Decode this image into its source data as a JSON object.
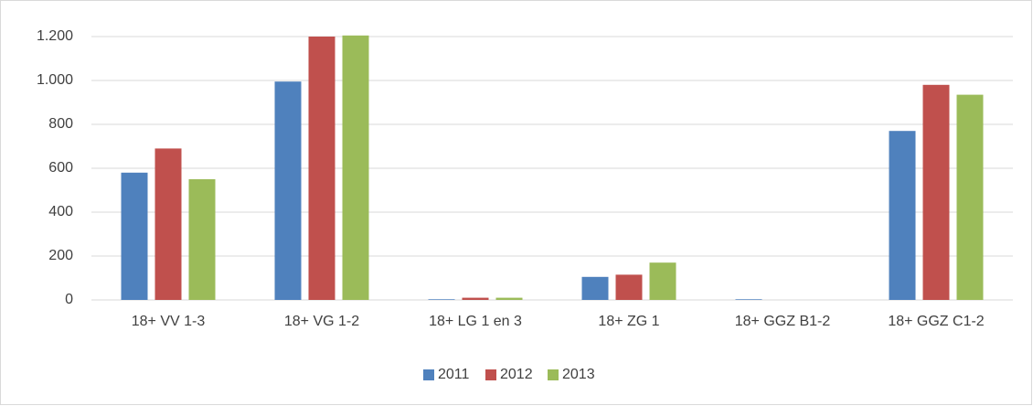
{
  "chart_data": {
    "type": "bar",
    "categories": [
      "18+ VV 1-3",
      "18+ VG 1-2",
      "18+ LG 1 en 3",
      "18+ ZG 1",
      "18+ GGZ B1-2",
      "18+ GGZ C1-2"
    ],
    "series": [
      {
        "name": "2011",
        "color": "#4f81bd",
        "values": [
          580,
          995,
          3,
          105,
          3,
          770
        ]
      },
      {
        "name": "2012",
        "color": "#c0504d",
        "values": [
          690,
          1200,
          10,
          115,
          0,
          980
        ]
      },
      {
        "name": "2013",
        "color": "#9bbb59",
        "values": [
          550,
          1205,
          10,
          170,
          0,
          935
        ]
      }
    ],
    "ylim": [
      0,
      1200
    ],
    "yticks": [
      0,
      200,
      400,
      600,
      800,
      {
        "value": 1000,
        "label": "1.000"
      },
      {
        "value": 1200,
        "label": "1.200"
      }
    ],
    "grid": true,
    "legend": "bottom"
  }
}
